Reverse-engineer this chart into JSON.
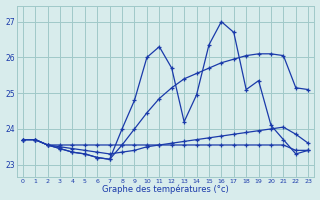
{
  "bg_color": "#d8ecec",
  "grid_color": "#a0c8c8",
  "line_color": "#1a3aaa",
  "xlabel": "Graphe des températures (°c)",
  "ylabel_ticks": [
    23,
    24,
    25,
    26,
    27
  ],
  "xlim": [
    -0.5,
    23.5
  ],
  "ylim": [
    22.65,
    27.45
  ],
  "series": [
    {
      "x": [
        0,
        1,
        2,
        3,
        4,
        5,
        6,
        7,
        8,
        9,
        10,
        11,
        12,
        13,
        14,
        15,
        16,
        17,
        18,
        19,
        20,
        21,
        22,
        23
      ],
      "y": [
        23.7,
        23.7,
        23.55,
        23.55,
        23.55,
        23.55,
        23.55,
        23.55,
        23.55,
        23.55,
        23.55,
        23.55,
        23.55,
        23.55,
        23.55,
        23.55,
        23.55,
        23.55,
        23.55,
        23.55,
        23.55,
        23.55,
        23.4,
        23.4
      ]
    },
    {
      "x": [
        0,
        1,
        2,
        3,
        4,
        5,
        6,
        7,
        8,
        9,
        10,
        11,
        12,
        13,
        14,
        15,
        16,
        17,
        18,
        19,
        20,
        21,
        22,
        23
      ],
      "y": [
        23.7,
        23.7,
        23.55,
        23.5,
        23.45,
        23.4,
        23.35,
        23.3,
        23.35,
        23.4,
        23.5,
        23.55,
        23.6,
        23.65,
        23.7,
        23.75,
        23.8,
        23.85,
        23.9,
        23.95,
        24.0,
        24.05,
        23.85,
        23.6
      ]
    },
    {
      "x": [
        0,
        1,
        2,
        3,
        4,
        5,
        6,
        7,
        8,
        9,
        10,
        11,
        12,
        13,
        14,
        15,
        16,
        17,
        18,
        19,
        20,
        21,
        22,
        23
      ],
      "y": [
        23.7,
        23.7,
        23.55,
        23.45,
        23.35,
        23.3,
        23.2,
        23.15,
        23.55,
        24.0,
        24.45,
        24.85,
        25.15,
        25.4,
        25.55,
        25.7,
        25.85,
        25.95,
        26.05,
        26.1,
        26.1,
        26.05,
        25.15,
        25.1
      ]
    },
    {
      "x": [
        0,
        1,
        2,
        3,
        4,
        5,
        6,
        7,
        8,
        9,
        10,
        11,
        12,
        13,
        14,
        15,
        16,
        17,
        18,
        19,
        20,
        21,
        22,
        23
      ],
      "y": [
        23.7,
        23.7,
        23.55,
        23.45,
        23.35,
        23.3,
        23.2,
        23.15,
        24.0,
        24.8,
        26.0,
        26.3,
        25.7,
        24.2,
        24.95,
        26.35,
        27.0,
        26.7,
        25.1,
        25.35,
        24.1,
        23.7,
        23.3,
        23.4
      ]
    }
  ]
}
